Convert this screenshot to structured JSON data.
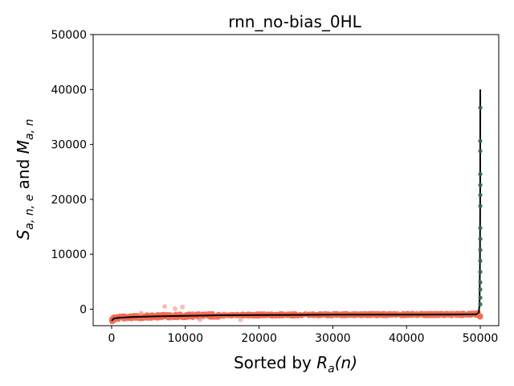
{
  "chart_data": {
    "type": "scatter",
    "title": "rnn_no-bias_0HL",
    "xlabel": {
      "pre": "Sorted by ",
      "var": "R",
      "sub": "a",
      "post": "(n)"
    },
    "ylabel": {
      "s": "S",
      "s_sub": "a, n, e",
      "and": " and ",
      "m": "M",
      "m_sub": "a, n"
    },
    "xlim": [
      -2500,
      52500
    ],
    "ylim": [
      -3000,
      50000
    ],
    "xticks": [
      0,
      10000,
      20000,
      30000,
      40000,
      50000
    ],
    "yticks": [
      0,
      10000,
      20000,
      30000,
      40000,
      50000
    ],
    "grid": false,
    "colors": {
      "scatter": "#f26b52",
      "scatter_faint": "#f4a592",
      "tail": "#2f6b46",
      "line": "#000000"
    },
    "line_series": {
      "x": [
        0,
        300,
        1000,
        3000,
        6000,
        10000,
        15000,
        20000,
        30000,
        40000,
        48000,
        49500,
        49800,
        49900,
        49950,
        49980,
        50000
      ],
      "y": [
        -2100,
        -1700,
        -1550,
        -1400,
        -1300,
        -1200,
        -1100,
        -1050,
        -1000,
        -980,
        -950,
        -900,
        -700,
        1000,
        8000,
        20000,
        40000
      ]
    },
    "outliers": [
      {
        "x": 7200,
        "y": 500
      },
      {
        "x": 8600,
        "y": 100
      },
      {
        "x": 9600,
        "y": 400
      },
      {
        "x": 4000,
        "y": -700
      },
      {
        "x": 12000,
        "y": -1900
      },
      {
        "x": 17500,
        "y": -1950
      }
    ],
    "tail_points": [
      {
        "x": 50000,
        "y": 36700
      },
      {
        "x": 50000,
        "y": 30600
      },
      {
        "x": 50000,
        "y": 28800
      },
      {
        "x": 50000,
        "y": 24600
      },
      {
        "x": 50000,
        "y": 22600
      },
      {
        "x": 50000,
        "y": 20800
      },
      {
        "x": 50000,
        "y": 18800
      },
      {
        "x": 50000,
        "y": 14800
      },
      {
        "x": 50000,
        "y": 12800
      },
      {
        "x": 50000,
        "y": 10800
      },
      {
        "x": 50000,
        "y": 8800
      },
      {
        "x": 50000,
        "y": 6800
      },
      {
        "x": 50000,
        "y": 4900
      },
      {
        "x": 50000,
        "y": 3600
      },
      {
        "x": 50000,
        "y": 2100
      },
      {
        "x": 50000,
        "y": 900
      }
    ]
  }
}
